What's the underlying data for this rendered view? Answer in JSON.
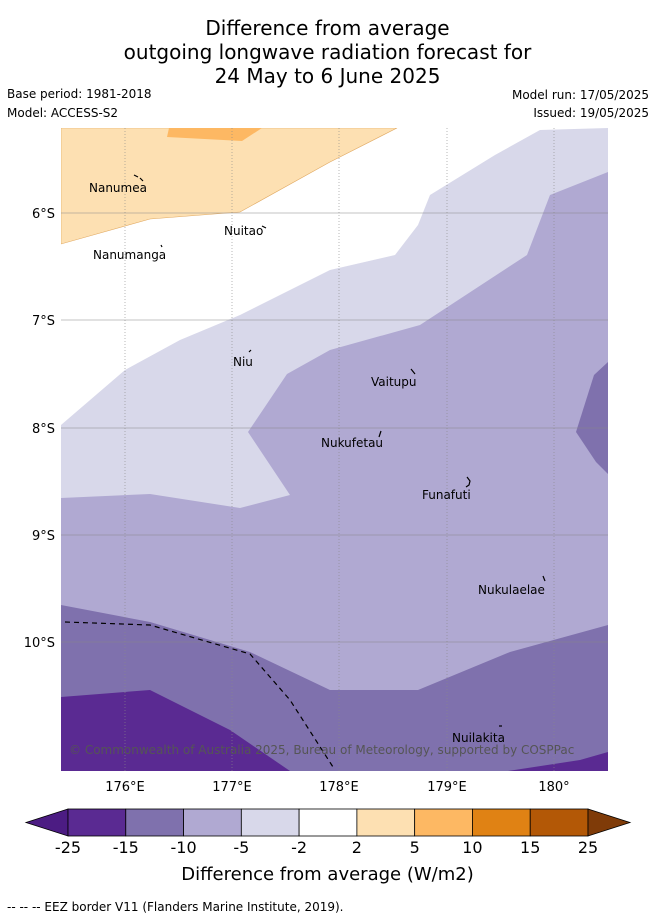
{
  "title": {
    "line1": "Difference from average",
    "line2": "outgoing longwave radiation forecast for",
    "line3": "24 May to 6 June 2025"
  },
  "meta": {
    "base_period": "Base period: 1981-2018",
    "model": "Model: ACCESS-S2",
    "model_run": "Model run: 17/05/2025",
    "issued": "Issued: 19/05/2025"
  },
  "axes": {
    "lat_ticks": [
      "6°S",
      "7°S",
      "8°S",
      "9°S",
      "10°S"
    ],
    "lon_ticks": [
      "176°E",
      "177°E",
      "178°E",
      "179°E",
      "180°"
    ]
  },
  "islands": [
    {
      "name": "Nanumea"
    },
    {
      "name": "Nuitao"
    },
    {
      "name": "Nanumanga"
    },
    {
      "name": "Niu"
    },
    {
      "name": "Vaitupu"
    },
    {
      "name": "Nukufetau"
    },
    {
      "name": "Funafuti"
    },
    {
      "name": "Nukulaelae"
    },
    {
      "name": "Nuilakita"
    }
  ],
  "copyright": "© Commonwealth of Australia 2025, Bureau of Meteorology, supported by COSPPac",
  "colorbar": {
    "ticks": [
      "-25",
      "-15",
      "-10",
      "-5",
      "-2",
      "2",
      "5",
      "10",
      "15",
      "25"
    ],
    "colors": [
      "#4c1c83",
      "#5a2a92",
      "#7f71ad",
      "#b0a9d2",
      "#d8d8ea",
      "#ffffff",
      "#fde0b2",
      "#fdb863",
      "#e08214",
      "#b35806",
      "#7f3b08"
    ],
    "label": "Difference from average (W/m2)"
  },
  "footnote": "--  --  -- EEZ border V11 (Flanders Marine Institute, 2019)."
}
